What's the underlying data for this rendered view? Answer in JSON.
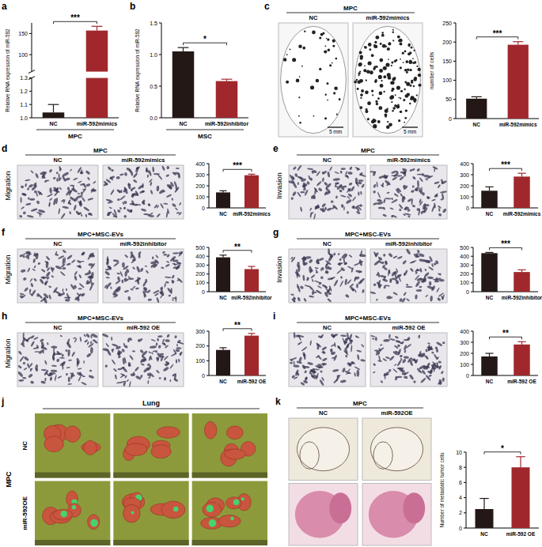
{
  "chart_data": [
    {
      "panel": "a",
      "type": "bar",
      "categories": [
        "NC",
        "miR-592mimics"
      ],
      "group_label": "MPC",
      "values": [
        1.04,
        157
      ],
      "errors": [
        0.06,
        10
      ],
      "colors": [
        "#231815",
        "#a0282c"
      ],
      "ylim": [
        1.0,
        175
      ],
      "ybreak": [
        1.3,
        60
      ],
      "yticks": [
        {
          "value": 1.0,
          "label": "1.0"
        },
        1.1,
        1.2,
        1.3,
        100,
        150
      ],
      "y_label": "Relative RNA expression of miR-592",
      "significance": "***"
    },
    {
      "panel": "b",
      "type": "bar",
      "categories": [
        "NC",
        "miR-592inhibitor"
      ],
      "group_label": "MSC",
      "values": [
        1.05,
        0.58
      ],
      "errors": [
        0.06,
        0.03
      ],
      "colors": [
        "#231815",
        "#a0282c"
      ],
      "ylim": [
        0,
        1.5
      ],
      "yticks": [
        {
          "value": 0,
          "label": "0.0"
        },
        0.5,
        {
          "value": 1,
          "label": "1.0"
        },
        1.5
      ],
      "y_label": "Relative RNA expression of miR-592",
      "significance": "*"
    },
    {
      "panel": "c",
      "type": "bar",
      "categories": [
        "NC",
        "miR-592mimics"
      ],
      "values": [
        52,
        193
      ],
      "errors": [
        5,
        8
      ],
      "colors": [
        "#231815",
        "#a0282c"
      ],
      "ylim": [
        0,
        250
      ],
      "yticks": [
        0,
        50,
        100,
        150,
        200,
        250
      ],
      "y_label": "number of cells",
      "significance": "***",
      "image": {
        "title": "MPC",
        "columns": [
          "NC",
          "miR-592mimics"
        ],
        "scale_bars": [
          "5 mm",
          "5 mm"
        ]
      }
    },
    {
      "panel": "d",
      "type": "bar",
      "categories": [
        "NC",
        "miR-592mimics"
      ],
      "values": [
        140,
        295
      ],
      "errors": [
        15,
        10
      ],
      "colors": [
        "#231815",
        "#a0282c"
      ],
      "ylim": [
        0,
        400
      ],
      "yticks": [
        0,
        100,
        200,
        300,
        400
      ],
      "significance": "***",
      "image": {
        "side_label": "Migration",
        "title": "MPC",
        "columns": [
          "NC",
          "miR-592mimics"
        ]
      }
    },
    {
      "panel": "e",
      "type": "bar",
      "categories": [
        "NC",
        "miR-592mimics"
      ],
      "values": [
        155,
        283
      ],
      "errors": [
        35,
        30
      ],
      "colors": [
        "#231815",
        "#a0282c"
      ],
      "ylim": [
        0,
        400
      ],
      "yticks": [
        0,
        100,
        200,
        300,
        400
      ],
      "significance": "***",
      "image": {
        "side_label": "Invasion",
        "title": "MPC",
        "columns": [
          "NC",
          "miR-592mimics"
        ]
      }
    },
    {
      "panel": "f",
      "type": "bar",
      "categories": [
        "NC",
        "miR-592inhibitor"
      ],
      "values": [
        388,
        255
      ],
      "errors": [
        25,
        30
      ],
      "colors": [
        "#231815",
        "#a0282c"
      ],
      "ylim": [
        0,
        500
      ],
      "yticks": [
        0,
        100,
        200,
        300,
        400,
        500
      ],
      "significance": "**",
      "image": {
        "side_label": "Migration",
        "title": "MPC+MSC-EVs",
        "columns": [
          "NC",
          "miR-592inhibitor"
        ]
      }
    },
    {
      "panel": "g",
      "type": "bar",
      "categories": [
        "NC",
        "miR-592inhibitor"
      ],
      "values": [
        435,
        222
      ],
      "errors": [
        8,
        25
      ],
      "colors": [
        "#231815",
        "#a0282c"
      ],
      "ylim": [
        0,
        500
      ],
      "yticks": [
        0,
        100,
        200,
        300,
        400,
        500
      ],
      "significance": "***",
      "image": {
        "side_label": "Invasion",
        "title": "MPC+MSC-EVs",
        "columns": [
          "NC",
          "miR-592inhibitor"
        ]
      }
    },
    {
      "panel": "h",
      "type": "bar",
      "categories": [
        "NC",
        "miR-592 OE"
      ],
      "values": [
        173,
        270
      ],
      "errors": [
        15,
        15
      ],
      "colors": [
        "#231815",
        "#a0282c"
      ],
      "ylim": [
        0,
        300
      ],
      "yticks": [
        0,
        100,
        200,
        300
      ],
      "significance": "**",
      "image": {
        "side_label": "Migration",
        "title": "MPC+MSC-EVs",
        "columns": [
          "NC",
          "miR-592 OE"
        ]
      }
    },
    {
      "panel": "i",
      "type": "bar",
      "categories": [
        "NC",
        "miR-592 OE"
      ],
      "values": [
        172,
        280
      ],
      "errors": [
        28,
        25
      ],
      "colors": [
        "#231815",
        "#a0282c"
      ],
      "ylim": [
        0,
        400
      ],
      "yticks": [
        0,
        100,
        200,
        300,
        400
      ],
      "significance": "**",
      "image": {
        "title": "MPC+MSC-EVs",
        "columns": [
          "NC",
          "miR-592 OE"
        ]
      }
    },
    {
      "panel": "k",
      "type": "bar",
      "categories": [
        "NC",
        "miR-592 OE"
      ],
      "values": [
        2.5,
        8
      ],
      "errors": [
        1.4,
        1.4
      ],
      "colors": [
        "#231815",
        "#a0282c"
      ],
      "ylim": [
        0,
        10
      ],
      "yticks": [
        0,
        2,
        4,
        6,
        8,
        10
      ],
      "y_label": "Number of metastatic tumor cells",
      "significance": "*",
      "image": {
        "title": "MPC",
        "columns": [
          "NC",
          "miR-592OE"
        ]
      }
    }
  ],
  "photo_panels": [
    {
      "panel": "j",
      "title": "Lung",
      "group_label": "MPC",
      "rows": [
        "NC",
        "miR-592OE"
      ]
    }
  ]
}
